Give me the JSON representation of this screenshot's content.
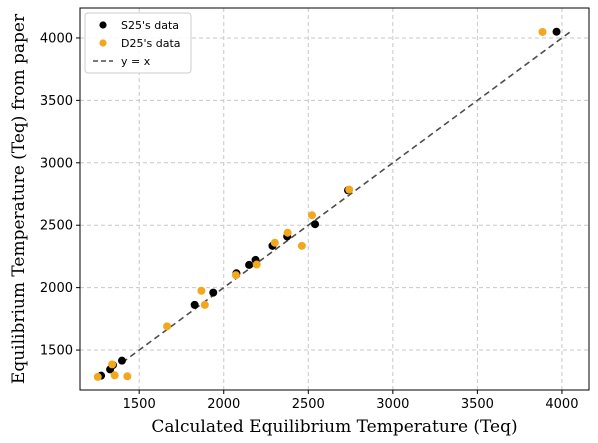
{
  "chart_data": {
    "type": "scatter",
    "xlabel": "Calculated Equilibrium Temperature (Teq)",
    "ylabel": "Equilibrium Temperature (Teq) from paper",
    "xlim": [
      1150,
      4160
    ],
    "ylim": [
      1180,
      4240
    ],
    "x_ticks": [
      1500,
      2000,
      2500,
      3000,
      3500,
      4000
    ],
    "y_ticks": [
      1500,
      2000,
      2500,
      3000,
      3500,
      4000
    ],
    "grid": true,
    "legend_position": "top-left",
    "series": [
      {
        "name": "S25's data",
        "color": "#000000",
        "marker": "circle",
        "points": [
          [
            1275,
            1295
          ],
          [
            1328,
            1345
          ],
          [
            1345,
            1380
          ],
          [
            1398,
            1415
          ],
          [
            1828,
            1862
          ],
          [
            1938,
            1960
          ],
          [
            2075,
            2115
          ],
          [
            2150,
            2182
          ],
          [
            2188,
            2222
          ],
          [
            2288,
            2335
          ],
          [
            2375,
            2410
          ],
          [
            2540,
            2508
          ],
          [
            2735,
            2780
          ],
          [
            3968,
            4050
          ]
        ]
      },
      {
        "name": "D25's data",
        "color": "#F2A81D",
        "marker": "circle",
        "points": [
          [
            1255,
            1285
          ],
          [
            1340,
            1385
          ],
          [
            1355,
            1298
          ],
          [
            1430,
            1290
          ],
          [
            1665,
            1690
          ],
          [
            1868,
            1975
          ],
          [
            1888,
            1862
          ],
          [
            2072,
            2100
          ],
          [
            2195,
            2185
          ],
          [
            2302,
            2360
          ],
          [
            2378,
            2440
          ],
          [
            2462,
            2335
          ],
          [
            2522,
            2580
          ],
          [
            2742,
            2785
          ],
          [
            3885,
            4048
          ]
        ]
      },
      {
        "name": "y = x",
        "color": "#4d4d4d",
        "style": "dashed",
        "line": [
          [
            1400,
            1400
          ],
          [
            4050,
            4050
          ]
        ]
      }
    ]
  }
}
